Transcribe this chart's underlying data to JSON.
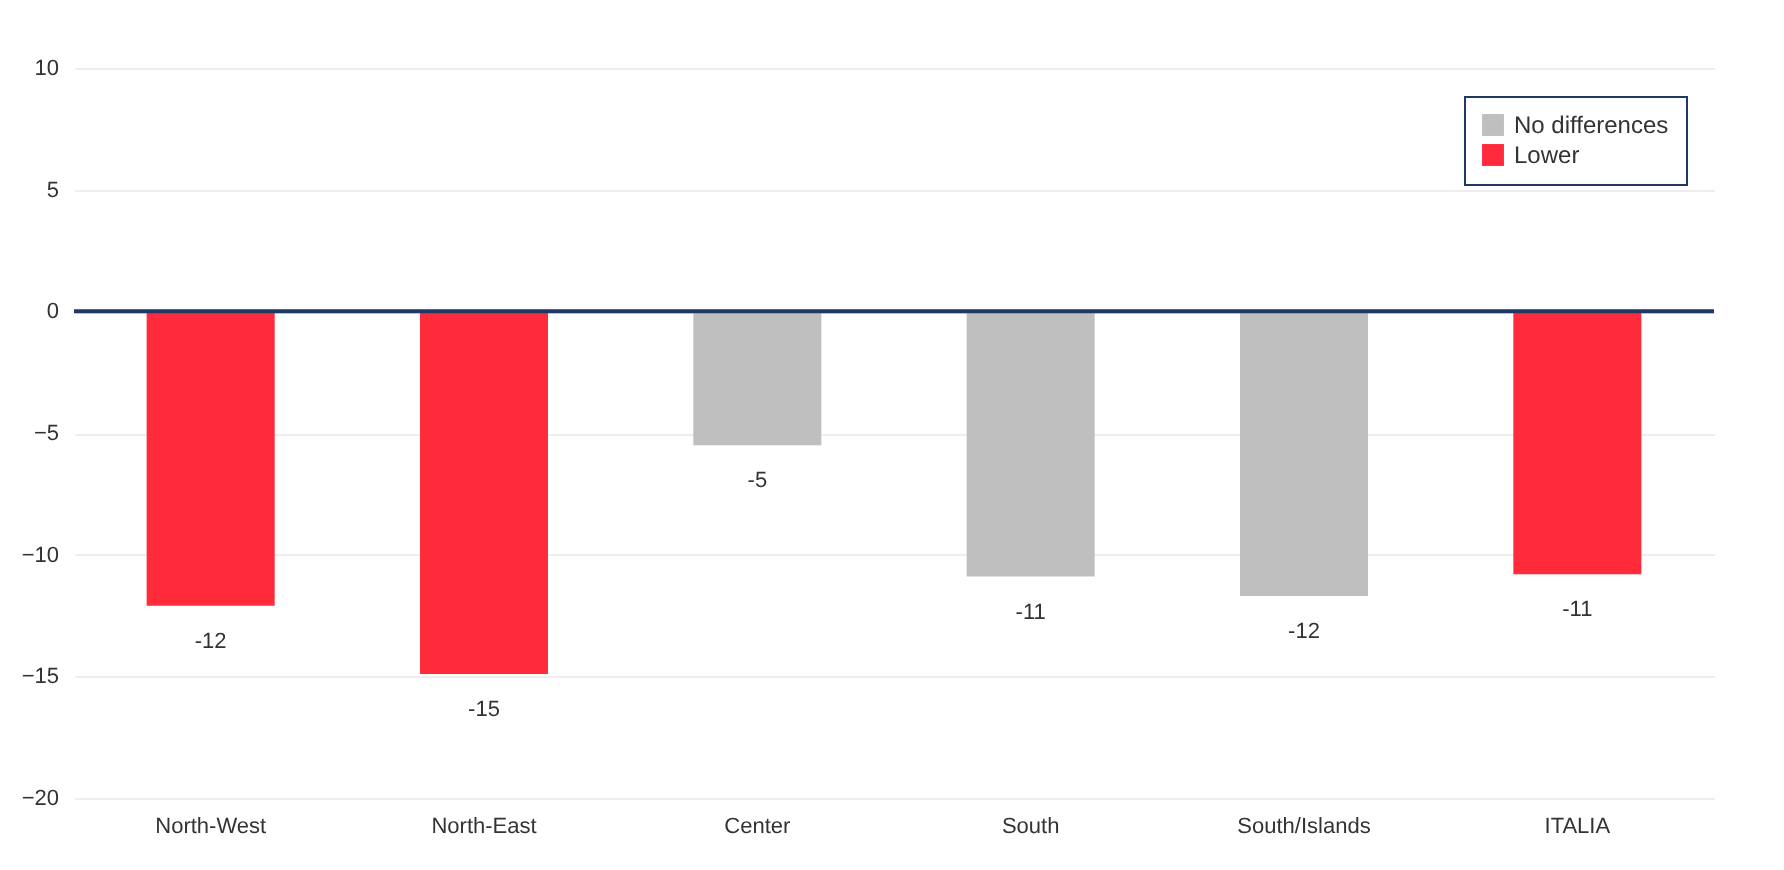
{
  "chart_data": {
    "type": "bar",
    "categories": [
      "North-West",
      "North-East",
      "Center",
      "South",
      "South/Islands",
      "ITALIA"
    ],
    "series": [
      {
        "name": "No differences",
        "color": "#bfbfbf",
        "values": [
          null,
          null,
          -5.5,
          -10.9,
          -11.7,
          null
        ],
        "value_labels": [
          null,
          null,
          "-5",
          "-11",
          "-12",
          null
        ]
      },
      {
        "name": "Lower",
        "color": "#ff2b3b",
        "values": [
          -12.1,
          -14.9,
          null,
          null,
          null,
          -10.8
        ],
        "value_labels": [
          "-12",
          "-15",
          null,
          null,
          null,
          "-11"
        ]
      }
    ],
    "ylim": [
      -20,
      10
    ],
    "yticks": [
      -20,
      -15,
      -10,
      -5,
      0,
      5,
      10
    ],
    "grid": "y",
    "legend": "top right",
    "ref_lines": [
      {
        "axis": "y",
        "value": 0,
        "color": "#1f3864"
      }
    ]
  }
}
